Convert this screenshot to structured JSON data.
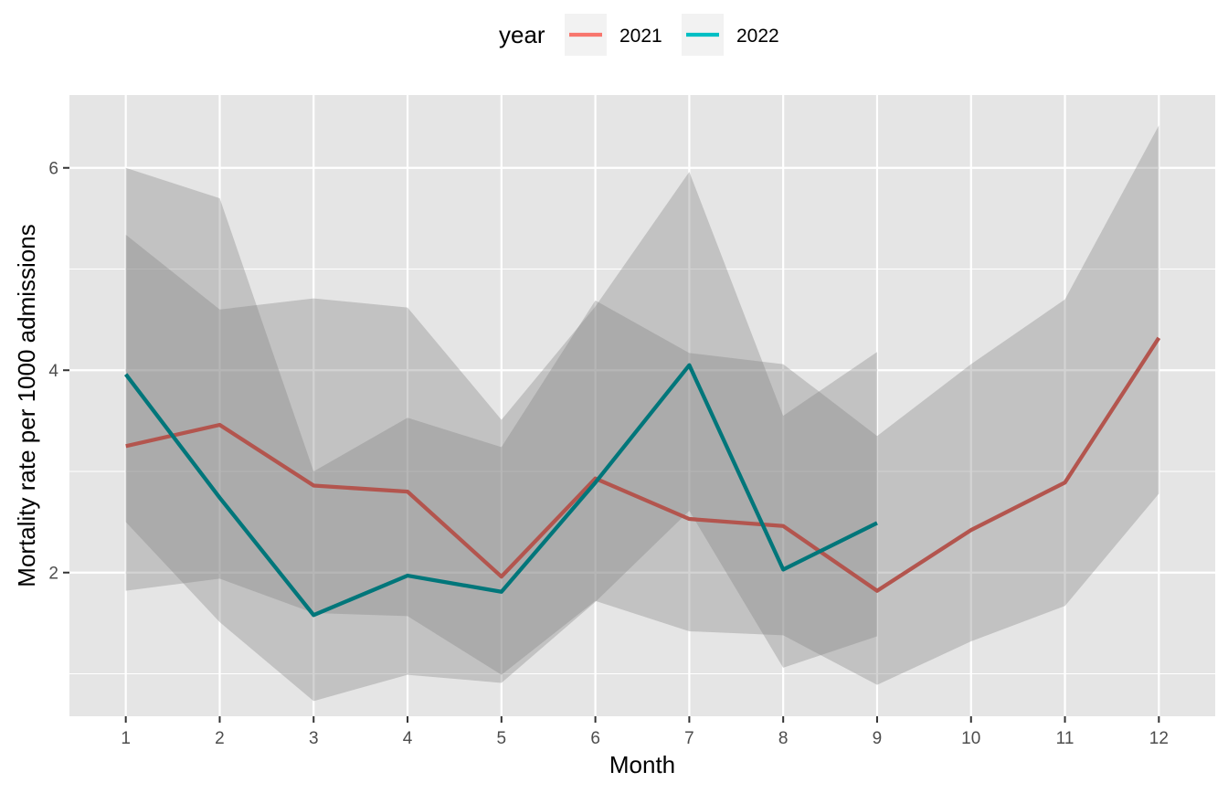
{
  "chart_data": {
    "type": "line",
    "title": "",
    "xlabel": "Month",
    "ylabel": "Mortality rate per 1000 admissions",
    "x_ticks": [
      1,
      2,
      3,
      4,
      5,
      6,
      7,
      8,
      9,
      10,
      11,
      12
    ],
    "y_ticks": [
      2,
      4,
      6
    ],
    "xlim": [
      0.4,
      12.6
    ],
    "ylim": [
      0.58,
      6.72
    ],
    "grid": true,
    "legend": {
      "title": "year",
      "position": "top"
    },
    "series": [
      {
        "name": "2021",
        "color": "#F8766D",
        "x": [
          1,
          2,
          3,
          4,
          5,
          6,
          7,
          8,
          9,
          10,
          11,
          12
        ],
        "y": [
          3.25,
          3.46,
          2.86,
          2.8,
          1.96,
          2.93,
          2.53,
          2.46,
          1.82,
          2.42,
          2.89,
          4.32
        ],
        "ci_lower": [
          1.82,
          1.94,
          1.6,
          1.57,
          0.99,
          1.72,
          1.42,
          1.38,
          0.89,
          1.32,
          1.67,
          2.78
        ],
        "ci_upper": [
          6.0,
          5.7,
          3.0,
          3.53,
          3.24,
          4.69,
          4.17,
          4.06,
          3.35,
          4.06,
          4.7,
          6.42
        ]
      },
      {
        "name": "2022",
        "color": "#00BFC4",
        "x": [
          1,
          2,
          3,
          4,
          5,
          6,
          7,
          8,
          9
        ],
        "y": [
          3.96,
          2.74,
          1.58,
          1.97,
          1.81,
          2.89,
          4.05,
          2.03,
          2.49
        ],
        "ci_lower": [
          2.5,
          1.51,
          0.73,
          0.99,
          0.91,
          1.71,
          2.61,
          1.06,
          1.37
        ],
        "ci_upper": [
          5.34,
          4.6,
          4.71,
          4.62,
          3.51,
          4.63,
          5.96,
          3.55,
          4.18
        ]
      }
    ]
  }
}
